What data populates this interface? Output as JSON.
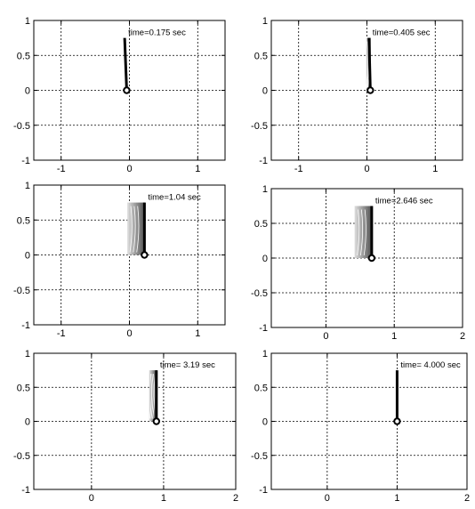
{
  "chart_data": [
    {
      "type": "line",
      "time_label": "time=0.175 sec",
      "xlim": [
        -1.4,
        1.4
      ],
      "ylim": [
        -1,
        1
      ],
      "xticks": [
        -1,
        0,
        1
      ],
      "xtick_labels": [
        "-1",
        "0",
        "1"
      ],
      "yticks": [
        -1,
        -0.5,
        0,
        0.5,
        1
      ],
      "ytick_labels": [
        "-1",
        "-0.5",
        "0",
        "0.5",
        "1"
      ],
      "grid": true,
      "pivot": {
        "x": -0.04,
        "y": 0
      },
      "pendulum": {
        "base_x": -0.04,
        "top_x": -0.07,
        "top_y": 0.75,
        "trail_width": 0
      }
    },
    {
      "type": "line",
      "time_label": "time=0.405 sec",
      "xlim": [
        -1.4,
        1.4
      ],
      "ylim": [
        -1,
        1
      ],
      "xticks": [
        -1,
        0,
        1
      ],
      "xtick_labels": [
        "-1",
        "0",
        "1"
      ],
      "yticks": [
        -1,
        -0.5,
        0,
        0.5,
        1
      ],
      "ytick_labels": [
        "-1",
        "-0.5",
        "0",
        "0.5",
        "1"
      ],
      "grid": true,
      "pivot": {
        "x": 0.05,
        "y": 0
      },
      "pendulum": {
        "base_x": 0.05,
        "top_x": 0.03,
        "top_y": 0.75,
        "trail_width": 0.06
      }
    },
    {
      "type": "line",
      "time_label": "time=1.04   sec",
      "xlim": [
        -1.4,
        1.4
      ],
      "ylim": [
        -1,
        1
      ],
      "xticks": [
        -1,
        0,
        1
      ],
      "xtick_labels": [
        "-1",
        "0",
        "1"
      ],
      "yticks": [
        -1,
        -0.5,
        0,
        0.5,
        1
      ],
      "ytick_labels": [
        "-1",
        "-0.5",
        "0",
        "0.5",
        "1"
      ],
      "grid": true,
      "pivot": {
        "x": 0.22,
        "y": 0
      },
      "pendulum": {
        "base_x": 0.22,
        "top_x": 0.22,
        "top_y": 0.75,
        "trail_width": 0.25
      }
    },
    {
      "type": "line",
      "time_label": "time=2.646 sec",
      "xlim": [
        -0.8,
        2.0
      ],
      "ylim": [
        -1,
        1
      ],
      "xticks": [
        0,
        1,
        2
      ],
      "xtick_labels": [
        "0",
        "1",
        "2"
      ],
      "yticks": [
        -1,
        -0.5,
        0,
        0.5,
        1
      ],
      "ytick_labels": [
        "-1",
        "-0.5",
        "0",
        "0.5",
        "1"
      ],
      "grid": true,
      "pivot": {
        "x": 0.67,
        "y": 0
      },
      "pendulum": {
        "base_x": 0.67,
        "top_x": 0.67,
        "top_y": 0.75,
        "trail_width": 0.25
      }
    },
    {
      "type": "line",
      "time_label": "time=  3.19 sec",
      "xlim": [
        -0.8,
        2.0
      ],
      "ylim": [
        -1,
        1
      ],
      "xticks": [
        0,
        1,
        2
      ],
      "xtick_labels": [
        "0",
        "1",
        "2"
      ],
      "yticks": [
        -1,
        -0.5,
        0,
        0.5,
        1
      ],
      "ytick_labels": [
        "-1",
        "-0.5",
        "0",
        "0.5",
        "1"
      ],
      "grid": true,
      "pivot": {
        "x": 0.9,
        "y": 0
      },
      "pendulum": {
        "base_x": 0.9,
        "top_x": 0.9,
        "top_y": 0.75,
        "trail_width": 0.1
      }
    },
    {
      "type": "line",
      "time_label": "time=  4.000 sec",
      "xlim": [
        -0.8,
        2.0
      ],
      "ylim": [
        -1,
        1
      ],
      "xticks": [
        0,
        1,
        2
      ],
      "xtick_labels": [
        "0",
        "1",
        "2"
      ],
      "yticks": [
        -1,
        -0.5,
        0,
        0.5,
        1
      ],
      "ytick_labels": [
        "-1",
        "-0.5",
        "0",
        "0.5",
        "1"
      ],
      "grid": true,
      "pivot": {
        "x": 1.0,
        "y": 0
      },
      "pendulum": {
        "base_x": 1.0,
        "top_x": 1.0,
        "top_y": 0.75,
        "trail_width": 0
      }
    }
  ]
}
